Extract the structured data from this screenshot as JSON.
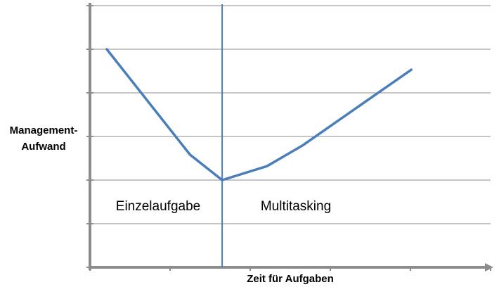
{
  "chart_data": {
    "type": "line",
    "y_label_lines": [
      "Management-",
      "Aufwand"
    ],
    "x_label": "Zeit für Aufgaben",
    "annotations": [
      "Einzelaufgabe",
      "Multitasking"
    ],
    "x": [
      0.21,
      1.25,
      1.65,
      2.21,
      2.65,
      4.01
    ],
    "values": [
      5.0,
      2.58,
      2.0,
      2.32,
      2.79,
      4.53
    ],
    "color": "#4a7ebb",
    "divider_x": 1.65,
    "divider_color": "#4a7ebb",
    "xlim": [
      0,
      5
    ],
    "ylim": [
      0,
      6
    ],
    "xticks": [
      0,
      1,
      2,
      3,
      4,
      5
    ],
    "yticks": [
      0,
      1,
      2,
      3,
      4,
      5,
      6
    ],
    "grid": true
  }
}
